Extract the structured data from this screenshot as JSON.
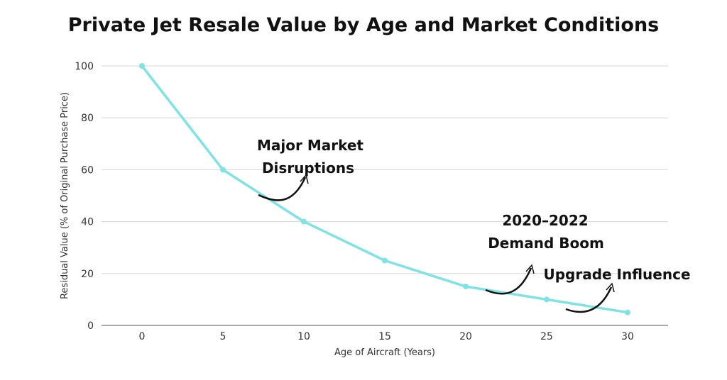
{
  "chart_data": {
    "type": "line",
    "title": "Private Jet Resale Value by Age and Market Conditions",
    "xlabel": "Age of Aircraft (Years)",
    "ylabel": "Residual Value (% of Original Purchase Price)",
    "x": [
      0,
      5,
      10,
      15,
      20,
      25,
      30
    ],
    "series": [
      {
        "name": "Residual Value",
        "values": [
          100,
          60,
          40,
          25,
          15,
          10,
          5
        ]
      }
    ],
    "xlim": [
      -2.5,
      32.5
    ],
    "ylim": [
      0,
      100
    ],
    "xticks": [
      0,
      5,
      10,
      15,
      20,
      25,
      30
    ],
    "yticks": [
      0,
      20,
      40,
      60,
      80,
      100
    ],
    "grid": true,
    "annotations": [
      {
        "id": "major-market",
        "lines": [
          "Major Market",
          "Disruptions"
        ],
        "x": 7.5,
        "y": 49
      },
      {
        "id": "demand-boom",
        "lines": [
          "2020–2022",
          "Demand Boom"
        ],
        "x": 21.5,
        "y": 13
      },
      {
        "id": "upgrade",
        "lines": [
          "Upgrade Influence"
        ],
        "x": 26.5,
        "y": 6
      }
    ]
  },
  "colors": {
    "line": "#7fe3e3",
    "grid": "#d5d5d5",
    "axis": "#555555",
    "text": "#111111"
  }
}
